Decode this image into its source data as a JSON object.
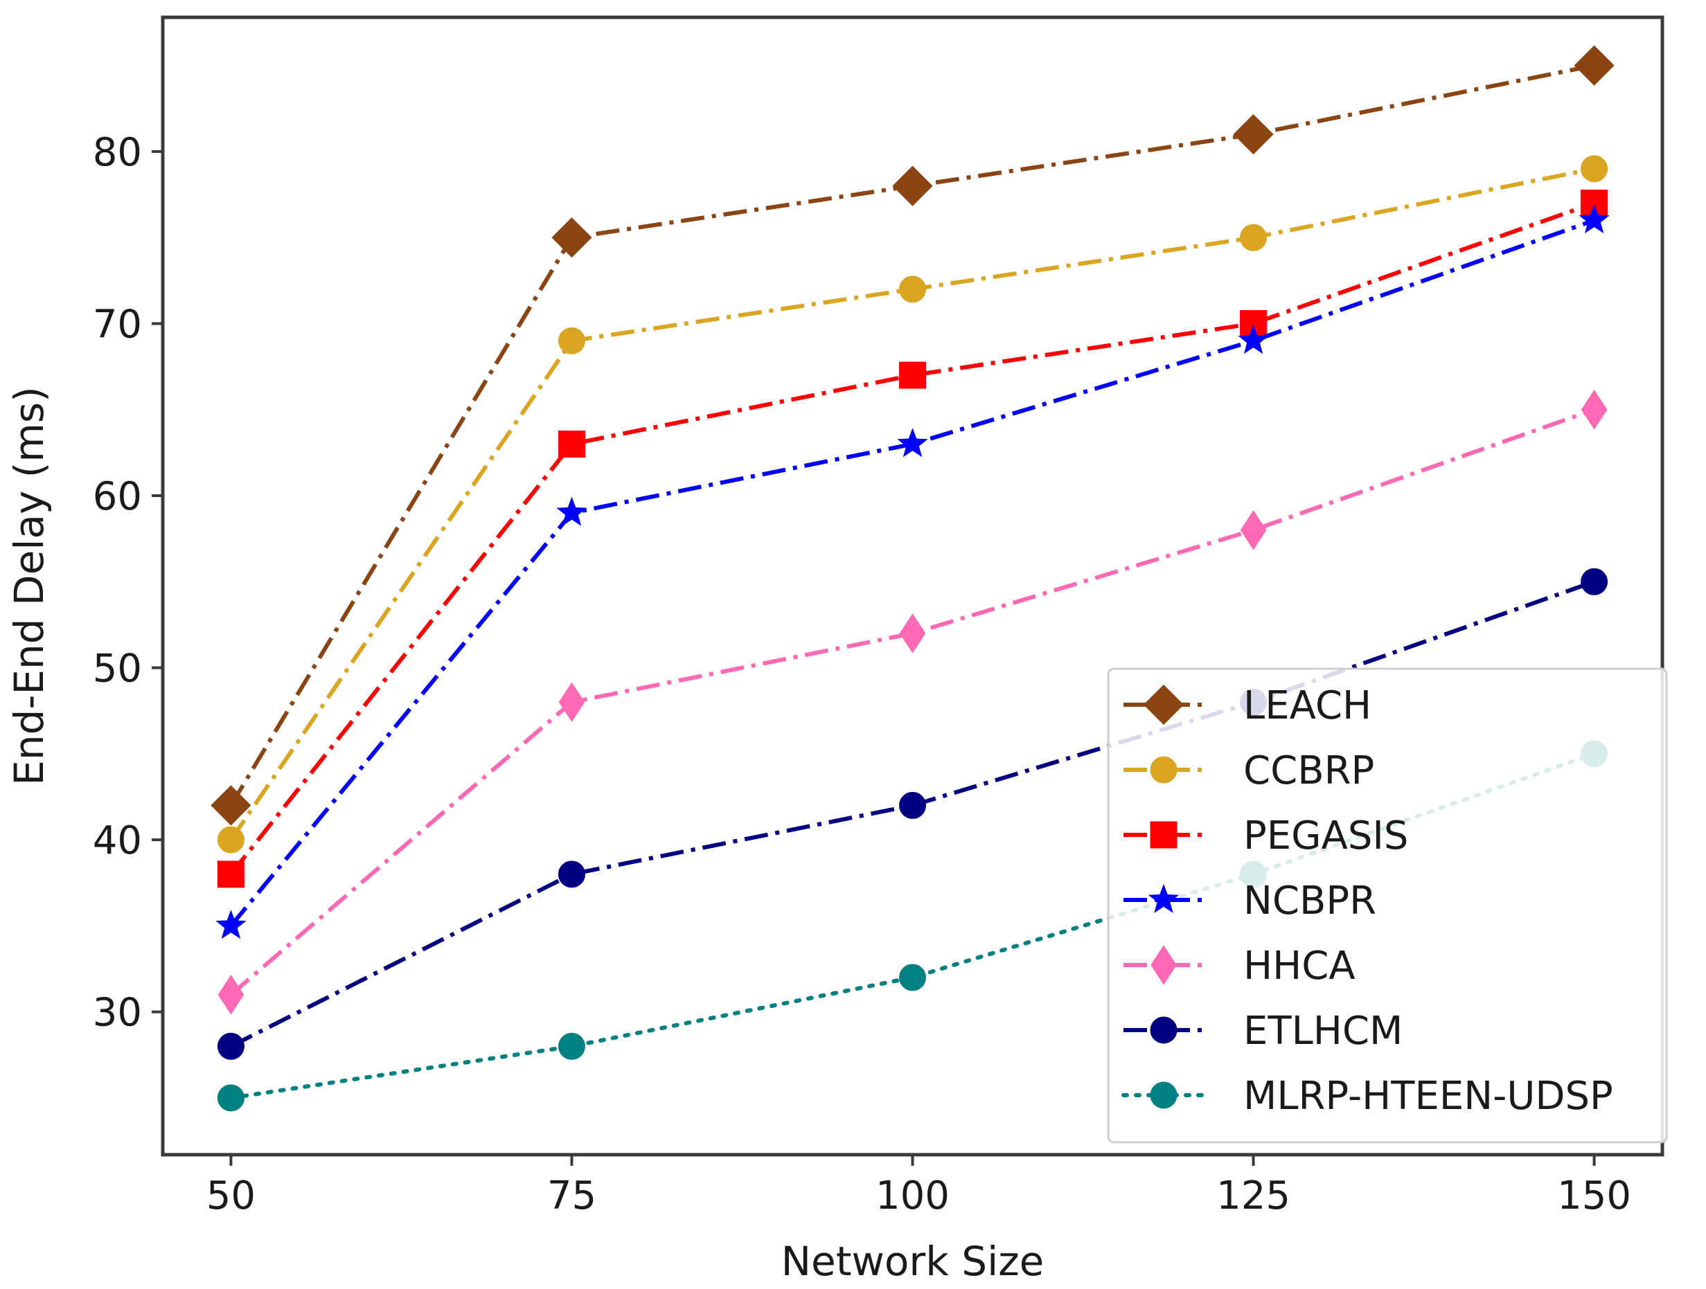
{
  "chart_data": {
    "type": "line",
    "title": "",
    "xlabel": "Network Size",
    "ylabel": "End-End Delay (ms)",
    "x": [
      50,
      75,
      100,
      125,
      150
    ],
    "xlim": [
      45,
      155
    ],
    "ylim": [
      21.7,
      87.8
    ],
    "xticks": [
      "50",
      "75",
      "100",
      "125",
      "150"
    ],
    "yticks": [
      "30",
      "40",
      "50",
      "60",
      "70",
      "80"
    ],
    "grid": false,
    "legend_position": "lower-right",
    "series": [
      {
        "name": "LEACH",
        "values": [
          42,
          75,
          78,
          81,
          85
        ],
        "color": "#8B4513",
        "marker": "diamond",
        "linestyle": "dashdot"
      },
      {
        "name": "CCBRP",
        "values": [
          40,
          69,
          72,
          75,
          79
        ],
        "color": "#DAA520",
        "marker": "circle",
        "linestyle": "dashdot"
      },
      {
        "name": "PEGASIS",
        "values": [
          38,
          63,
          67,
          70,
          77
        ],
        "color": "#FF0000",
        "marker": "square",
        "linestyle": "dashdot"
      },
      {
        "name": "NCBPR",
        "values": [
          35,
          59,
          63,
          69,
          76
        ],
        "color": "#0000FF",
        "marker": "star",
        "linestyle": "dashdot"
      },
      {
        "name": "HHCA",
        "values": [
          31,
          48,
          52,
          58,
          65
        ],
        "color": "#FF69B4",
        "marker": "thin-diamond",
        "linestyle": "dashdot"
      },
      {
        "name": "ETLHCM",
        "values": [
          28,
          38,
          42,
          48,
          55
        ],
        "color": "#000080",
        "marker": "circle",
        "linestyle": "dashdot"
      },
      {
        "name": "MLRP-HTEEN-UDSP",
        "values": [
          25,
          28,
          32,
          38,
          45
        ],
        "color": "#008080",
        "marker": "circle",
        "linestyle": "dotted"
      }
    ]
  }
}
